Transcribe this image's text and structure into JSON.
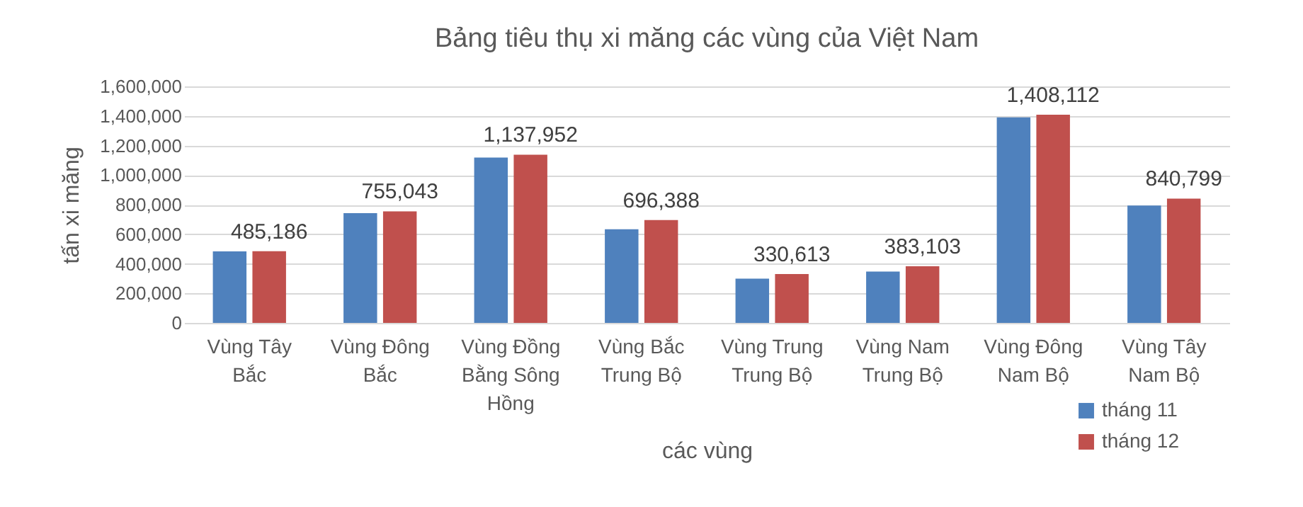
{
  "chart_data": {
    "type": "bar",
    "title": "Bảng tiêu thụ xi măng các vùng của Việt Nam",
    "xlabel": "các vùng",
    "ylabel": "tấn xi măng",
    "categories": [
      "Vùng Tây Bắc",
      "Vùng Đông Bắc",
      "Vùng Đồng Bằng Sông Hồng",
      "Vùng Bắc Trung Bộ",
      "Vùng Trung Trung Bộ",
      "Vùng Nam Trung Bộ",
      "Vùng Đông Nam Bộ",
      "Vùng Tây Nam Bộ"
    ],
    "series": [
      {
        "name": "tháng 11",
        "color": "#4f81bd",
        "values": [
          484000,
          743000,
          1119000,
          634000,
          300000,
          347000,
          1390000,
          794000
        ]
      },
      {
        "name": "tháng 12",
        "color": "#c0504d",
        "values": [
          485186,
          755043,
          1137952,
          696388,
          330613,
          383103,
          1408112,
          840799
        ],
        "value_labels": [
          "485,186",
          "755,043",
          "1,137,952",
          "696,388",
          "330,613",
          "383,103",
          "1,408,112",
          "840,799"
        ]
      }
    ],
    "ylim": [
      0,
      1600000
    ],
    "yticks": [
      0,
      {
        "value": 200000,
        "label": "200,000"
      },
      {
        "value": 400000,
        "label": "400,000"
      },
      {
        "value": 600000,
        "label": "600,000"
      },
      {
        "value": 800000,
        "label": "800,000"
      },
      {
        "value": 1000000,
        "label": "1,000,000"
      },
      {
        "value": 1200000,
        "label": "1,200,000"
      },
      {
        "value": 1400000,
        "label": "1,400,000"
      },
      {
        "value": 1600000,
        "label": "1,600,000"
      }
    ],
    "grid": "y",
    "legend": "bottom right"
  }
}
